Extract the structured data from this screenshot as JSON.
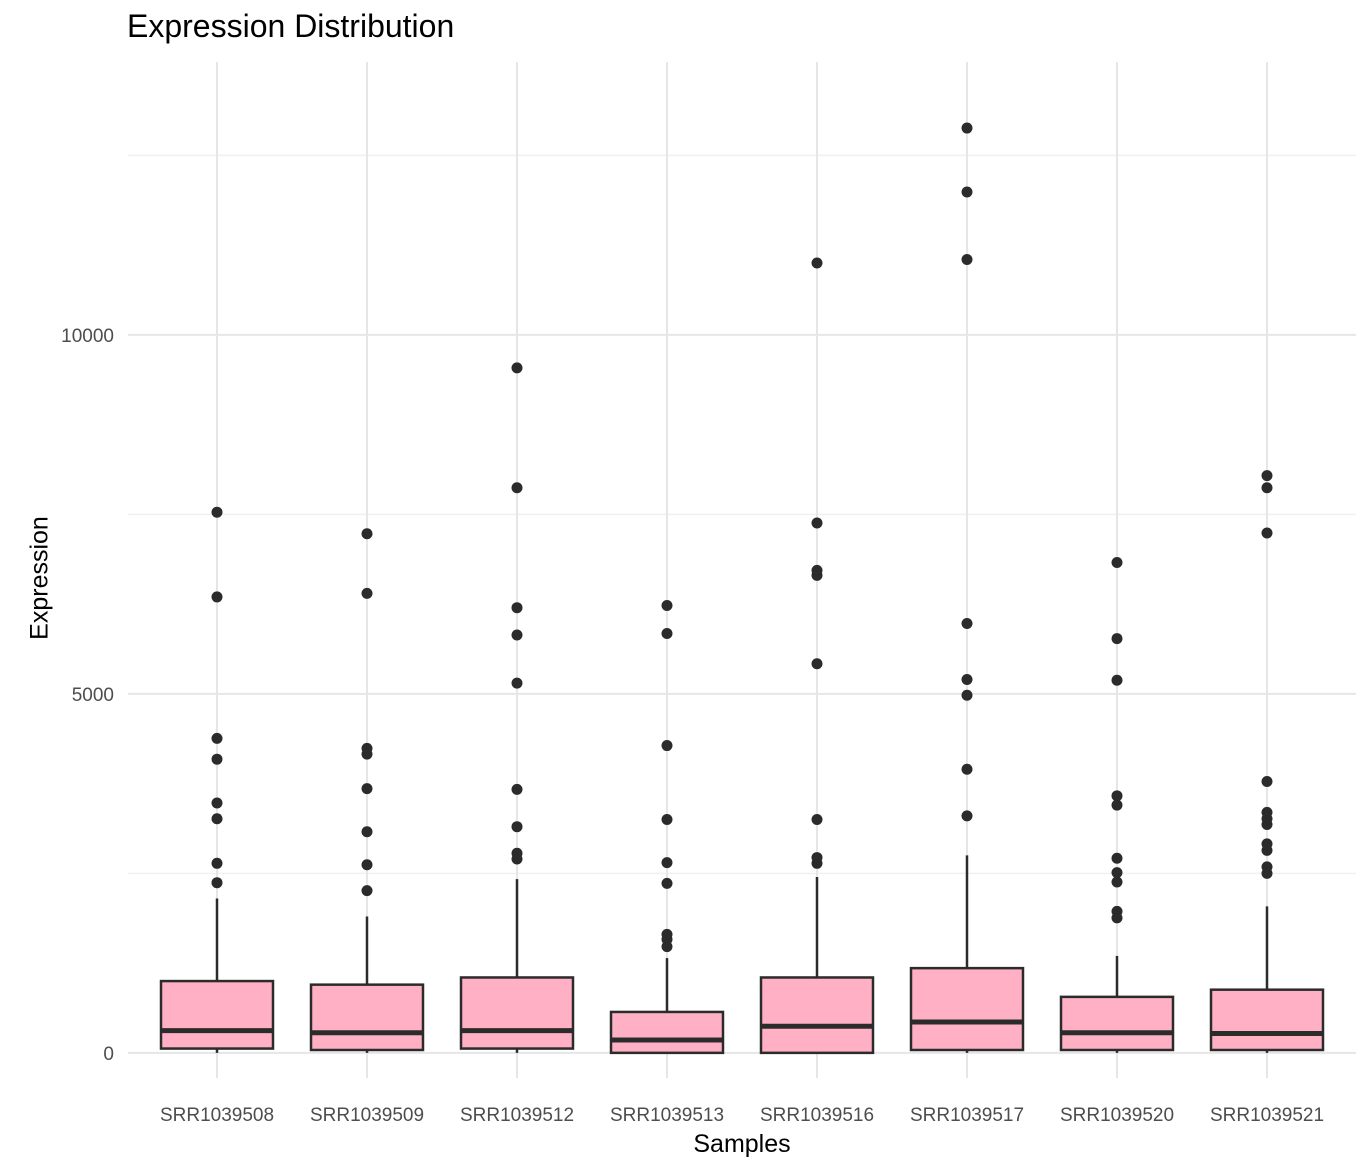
{
  "chart_data": {
    "type": "boxplot",
    "title": "Expression Distribution",
    "xlabel": "Samples",
    "ylabel": "Expression",
    "ylim": [
      -350,
      13800
    ],
    "yticks": [
      0,
      5000,
      10000
    ],
    "grid": true,
    "colors": {
      "box_fill": "#ffb0c4",
      "box_stroke": "#2b2b2b",
      "outlier": "#2b2b2b",
      "grid": "#e6e6e6"
    },
    "categories": [
      "SRR1039508",
      "SRR1039509",
      "SRR1039512",
      "SRR1039513",
      "SRR1039516",
      "SRR1039517",
      "SRR1039520",
      "SRR1039521"
    ],
    "boxes": [
      {
        "min": 0,
        "q1": 60,
        "median": 310,
        "q3": 1000,
        "whisker_high": 2150,
        "outliers": [
          2370,
          2640,
          3260,
          3480,
          4090,
          4380,
          6350,
          7530
        ]
      },
      {
        "min": 0,
        "q1": 40,
        "median": 280,
        "q3": 950,
        "whisker_high": 1900,
        "outliers": [
          2260,
          2620,
          3080,
          3680,
          4160,
          4240,
          6400,
          7230
        ]
      },
      {
        "min": 0,
        "q1": 60,
        "median": 310,
        "q3": 1050,
        "whisker_high": 2420,
        "outliers": [
          2700,
          2780,
          3150,
          3670,
          5150,
          5820,
          6200,
          7870,
          9540
        ]
      },
      {
        "min": 0,
        "q1": 0,
        "median": 180,
        "q3": 570,
        "whisker_high": 1320,
        "outliers": [
          1480,
          1580,
          1650,
          2360,
          2650,
          3250,
          4280,
          5840,
          6230
        ]
      },
      {
        "min": 0,
        "q1": 0,
        "median": 370,
        "q3": 1050,
        "whisker_high": 2450,
        "outliers": [
          2640,
          2720,
          3250,
          5420,
          6650,
          6720,
          7380,
          11000
        ]
      },
      {
        "min": 0,
        "q1": 40,
        "median": 430,
        "q3": 1180,
        "whisker_high": 2750,
        "outliers": [
          3300,
          3950,
          4980,
          5200,
          5980,
          11050,
          11990,
          12880
        ]
      },
      {
        "min": 0,
        "q1": 40,
        "median": 280,
        "q3": 780,
        "whisker_high": 1350,
        "outliers": [
          1880,
          1970,
          2380,
          2510,
          2710,
          3450,
          3580,
          5190,
          5770,
          6830
        ]
      },
      {
        "min": 0,
        "q1": 40,
        "median": 270,
        "q3": 880,
        "whisker_high": 2040,
        "outliers": [
          2500,
          2590,
          2820,
          2910,
          3180,
          3260,
          3350,
          3780,
          7240,
          7870,
          8040
        ]
      }
    ]
  }
}
